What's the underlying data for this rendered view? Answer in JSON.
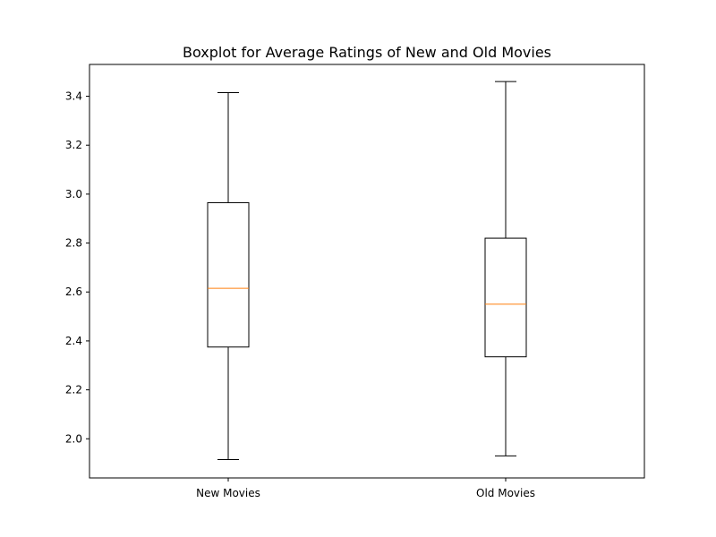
{
  "chart_data": {
    "type": "box",
    "title": "Boxplot for Average Ratings of New and Old Movies",
    "xlabel": "",
    "ylabel": "",
    "categories": [
      "New Movies",
      "Old Movies"
    ],
    "boxes": [
      {
        "category": "New Movies",
        "whisker_low": 1.915,
        "q1": 2.375,
        "median": 2.615,
        "q3": 2.965,
        "whisker_high": 3.415
      },
      {
        "category": "Old Movies",
        "whisker_low": 1.93,
        "q1": 2.335,
        "median": 2.55,
        "q3": 2.82,
        "whisker_high": 3.46
      }
    ],
    "ylim": [
      1.84,
      3.53
    ],
    "yticks": [
      2.0,
      2.2,
      2.4,
      2.6,
      2.8,
      3.0,
      3.2,
      3.4
    ],
    "ytick_labels": [
      "2.0",
      "2.2",
      "2.4",
      "2.6",
      "2.8",
      "3.0",
      "3.2",
      "3.4"
    ],
    "grid": false,
    "colors": {
      "box": "#000000",
      "whisker": "#000000",
      "median": "#ff7f0e"
    }
  }
}
